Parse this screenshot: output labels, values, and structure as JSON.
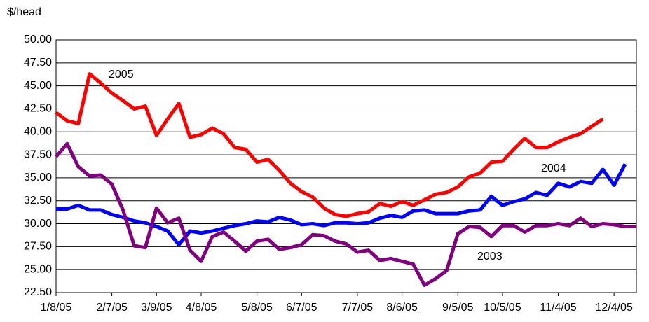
{
  "chart_data": {
    "type": "line",
    "y_label": "$/head",
    "categories": [
      "1/8/05",
      null,
      null,
      null,
      null,
      "2/7/05",
      null,
      null,
      null,
      "3/9/05",
      null,
      null,
      null,
      "4/8/05",
      null,
      null,
      null,
      null,
      "5/8/05",
      null,
      null,
      null,
      "6/7/05",
      null,
      null,
      null,
      null,
      "7/7/05",
      null,
      null,
      null,
      "8/6/05",
      null,
      null,
      null,
      null,
      "9/5/05",
      null,
      null,
      null,
      "10/5/05",
      null,
      null,
      null,
      null,
      "11/4/05",
      null,
      null,
      null,
      null,
      "12/4/05",
      null,
      null
    ],
    "series": [
      {
        "name": "2005",
        "color": "#ff0000",
        "values": [
          42.1,
          41.2,
          40.9,
          46.3,
          45.3,
          44.2,
          43.4,
          42.5,
          42.8,
          39.6,
          41.4,
          43.1,
          39.4,
          39.7,
          40.4,
          39.8,
          38.3,
          38.1,
          36.7,
          37.0,
          35.8,
          34.4,
          33.5,
          32.9,
          31.7,
          31.0,
          30.8,
          31.1,
          31.3,
          32.2,
          31.9,
          32.4,
          32.0,
          32.6,
          33.2,
          33.4,
          34.0,
          35.1,
          35.5,
          36.7,
          36.8,
          38.1,
          39.3,
          38.3,
          38.3,
          38.9,
          39.4,
          39.8,
          40.6,
          41.4,
          null,
          null,
          null
        ]
      },
      {
        "name": "2004",
        "color": "#0000ff",
        "values": [
          31.6,
          31.6,
          32.0,
          31.5,
          31.5,
          31.0,
          30.7,
          30.3,
          30.1,
          29.7,
          29.2,
          27.7,
          29.2,
          29.0,
          29.2,
          29.5,
          29.8,
          30.0,
          30.3,
          30.2,
          30.7,
          30.4,
          29.9,
          30.0,
          29.8,
          30.1,
          30.1,
          30.0,
          30.1,
          30.6,
          30.9,
          30.7,
          31.4,
          31.5,
          31.1,
          31.1,
          31.1,
          31.4,
          31.5,
          33.0,
          32.0,
          32.4,
          32.7,
          33.4,
          33.1,
          34.4,
          34.0,
          34.6,
          34.4,
          35.9,
          34.2,
          36.5,
          null
        ]
      },
      {
        "name": "2003",
        "color": "#800080",
        "values": [
          37.3,
          38.7,
          36.2,
          35.2,
          35.3,
          34.3,
          31.5,
          27.6,
          27.4,
          31.7,
          30.1,
          30.6,
          27.1,
          25.9,
          28.6,
          29.1,
          28.1,
          27.0,
          28.1,
          28.3,
          27.2,
          27.4,
          27.7,
          28.8,
          28.7,
          28.1,
          27.8,
          26.9,
          27.1,
          26.0,
          26.2,
          25.9,
          25.6,
          23.3,
          24.0,
          24.9,
          28.9,
          29.7,
          29.6,
          28.6,
          29.8,
          29.8,
          29.1,
          29.8,
          29.8,
          30.0,
          29.8,
          30.6,
          29.7,
          30.0,
          29.9,
          29.7,
          29.7
        ]
      }
    ],
    "ylim": [
      22.5,
      50
    ],
    "yticks": [
      {
        "value": 22.5,
        "label": "22.50"
      },
      {
        "value": 25,
        "label": "25.00"
      },
      {
        "value": 27.5,
        "label": "27.50"
      },
      {
        "value": 30,
        "label": "30.00"
      },
      {
        "value": 32.5,
        "label": "32.50"
      },
      {
        "value": 35,
        "label": "35.00"
      },
      {
        "value": 37.5,
        "label": "37.50"
      },
      {
        "value": 40,
        "label": "40.00"
      },
      {
        "value": 42.5,
        "label": "42.50"
      },
      {
        "value": 45,
        "label": "45.00"
      },
      {
        "value": 47.5,
        "label": "47.50"
      },
      {
        "value": 50,
        "label": "50.00"
      }
    ],
    "grid": true
  }
}
